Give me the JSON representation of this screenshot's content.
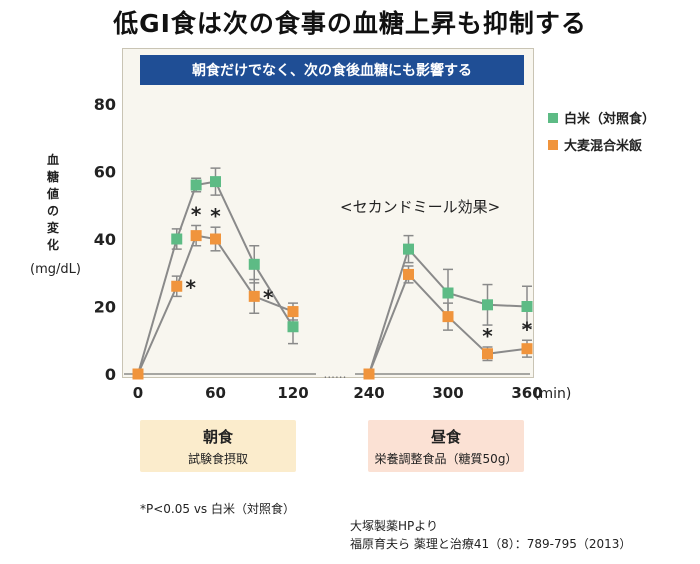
{
  "title": "低GI食は次の食事の血糖上昇も抑制する",
  "chart_data": {
    "type": "line",
    "title": "朝食だけでなく、次の食後血糖にも影響する",
    "ylabel": "血糖値の変化",
    "yunit": "(mg/dL)",
    "xunit": "(min)",
    "ylim": [
      0,
      80
    ],
    "yticks": [
      0,
      20,
      40,
      60,
      80
    ],
    "xticks": [
      "0",
      "60",
      "120",
      "240",
      "300",
      "360"
    ],
    "axis_break": "......",
    "legend_position": "top-right",
    "annotation": "<セカンドミール効果>",
    "significance_mark": "*",
    "series": [
      {
        "name": "白米（対照食）",
        "color": "#5dbb85",
        "segments": [
          [
            {
              "x": 0,
              "y": 0
            },
            {
              "x": 30,
              "y": 40,
              "err": 3
            },
            {
              "x": 45,
              "y": 56,
              "err": 2
            },
            {
              "x": 60,
              "y": 57,
              "err": 4
            },
            {
              "x": 90,
              "y": 32.5,
              "err": 5.5
            },
            {
              "x": 120,
              "y": 14,
              "err": 5
            }
          ],
          [
            {
              "x": 240,
              "y": 0
            },
            {
              "x": 270,
              "y": 37,
              "err": 4
            },
            {
              "x": 300,
              "y": 24,
              "err": 7
            },
            {
              "x": 330,
              "y": 20.5,
              "err": 6
            },
            {
              "x": 360,
              "y": 20,
              "err": 6
            }
          ]
        ]
      },
      {
        "name": "大麦混合米飯",
        "color": "#f0943c",
        "segments": [
          [
            {
              "x": 0,
              "y": 0
            },
            {
              "x": 30,
              "y": 26,
              "err": 3,
              "sig": true
            },
            {
              "x": 45,
              "y": 41,
              "err": 3,
              "sig": true
            },
            {
              "x": 60,
              "y": 40,
              "err": 3.5,
              "sig": true
            },
            {
              "x": 90,
              "y": 23,
              "err": 5,
              "sig": true
            },
            {
              "x": 120,
              "y": 18.5,
              "err": 2.5
            }
          ],
          [
            {
              "x": 240,
              "y": 0
            },
            {
              "x": 270,
              "y": 29.5,
              "err": 2.5
            },
            {
              "x": 300,
              "y": 17,
              "err": 4
            },
            {
              "x": 330,
              "y": 6,
              "err": 2,
              "sig": true
            },
            {
              "x": 360,
              "y": 7.5,
              "err": 2.5,
              "sig": true
            }
          ]
        ]
      }
    ]
  },
  "meals": [
    {
      "name": "朝食",
      "desc": "試験食摂取",
      "color": "#fbeccc"
    },
    {
      "name": "昼食",
      "desc": "栄養調整食品（糖質50g）",
      "color": "#fbe1d4"
    }
  ],
  "footnote": "*P<0.05 vs 白米（対照食）",
  "source_line1": "大塚製薬HPより",
  "source_line2": "福原育夫ら 薬理と治療41（8）：789-795（2013）"
}
